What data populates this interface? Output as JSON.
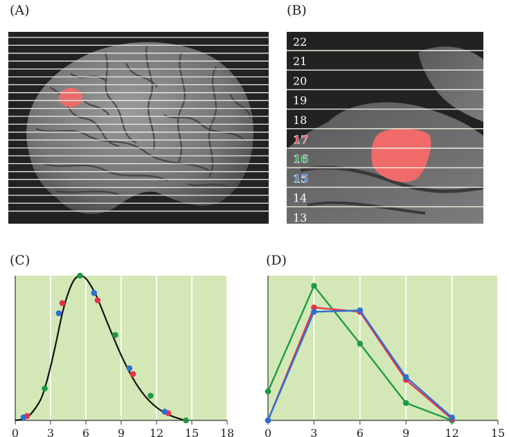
{
  "panel_labels": {
    "a": "(A)",
    "b": "(B)",
    "c": "(C)",
    "d": "(D)"
  },
  "slice_numbers": [
    "22",
    "21",
    "20",
    "19",
    "18",
    "17",
    "16",
    "15",
    "14",
    "13"
  ],
  "colors": {
    "red": "#e8324a",
    "green": "#1e9a44",
    "blue": "#2e6fd4",
    "plot_bg": "#d3e8b6",
    "grid": "#ffffff",
    "curve": "#111111",
    "activation": "#f06a6a"
  },
  "chart_data": [
    {
      "panel": "C",
      "type": "line",
      "title": "",
      "xlabel": "",
      "ylabel": "",
      "x_ticks": [
        "0",
        "3",
        "6",
        "9",
        "12",
        "15",
        "18"
      ],
      "xlim": [
        0,
        18
      ],
      "ylim": [
        0,
        1
      ],
      "grid": true,
      "curve": {
        "x": [
          0,
          1,
          2,
          2.5,
          3,
          3.5,
          4,
          4.5,
          5,
          5.5,
          6,
          6.5,
          7,
          8,
          9,
          10,
          11,
          12,
          13,
          14,
          14.5
        ],
        "y": [
          0,
          0.02,
          0.12,
          0.22,
          0.37,
          0.55,
          0.74,
          0.88,
          0.97,
          1.0,
          0.98,
          0.92,
          0.84,
          0.64,
          0.45,
          0.29,
          0.17,
          0.09,
          0.04,
          0.01,
          0
        ]
      },
      "points": [
        {
          "color": "red",
          "x": [
            1.0,
            4.0,
            7.0,
            10.0,
            13.0
          ],
          "y": [
            0.03,
            0.81,
            0.83,
            0.32,
            0.05
          ]
        },
        {
          "color": "green",
          "x": [
            2.5,
            5.5,
            8.5,
            11.5,
            14.5
          ],
          "y": [
            0.22,
            1.0,
            0.59,
            0.17,
            0.0
          ]
        },
        {
          "color": "blue",
          "x": [
            0.7,
            3.7,
            6.7,
            9.7,
            12.7
          ],
          "y": [
            0.02,
            0.74,
            0.88,
            0.36,
            0.06
          ]
        }
      ]
    },
    {
      "panel": "D",
      "type": "line",
      "title": "",
      "xlabel": "",
      "ylabel": "",
      "x_ticks": [
        "0",
        "3",
        "6",
        "9",
        "12",
        "15"
      ],
      "xlim": [
        0,
        15
      ],
      "ylim": [
        0,
        1
      ],
      "grid": true,
      "series": [
        {
          "color": "green",
          "x": [
            0,
            3,
            6,
            9,
            12
          ],
          "y": [
            0.2,
            0.93,
            0.53,
            0.12,
            0.0
          ]
        },
        {
          "color": "red",
          "x": [
            0,
            3,
            6,
            9,
            12
          ],
          "y": [
            0.0,
            0.78,
            0.75,
            0.28,
            0.01
          ]
        },
        {
          "color": "blue",
          "x": [
            0,
            3,
            6,
            9,
            12
          ],
          "y": [
            0.0,
            0.75,
            0.76,
            0.3,
            0.02
          ]
        }
      ]
    }
  ]
}
